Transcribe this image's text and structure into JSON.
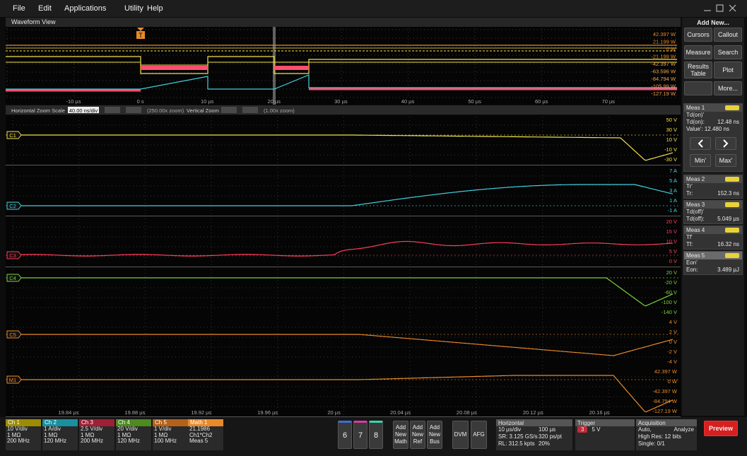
{
  "menu_bar": {
    "items": [
      "File",
      "Edit",
      "Applications",
      "Utility",
      "Help"
    ]
  },
  "waveform_view": {
    "title": "Waveform View",
    "overview": {
      "trigger_marker": "T",
      "scale_labels": [
        "42.397 W",
        "21.199 W",
        "0 W",
        "-21.199 W",
        "-42.397 W",
        "-63.596 W",
        "-84.794 W",
        "-105.99 W",
        "-127.19 W"
      ],
      "time_labels": [
        "-10 µs",
        "0 s",
        "10 µs",
        "20 µs",
        "30 µs",
        "40 µs",
        "50 µs",
        "60 µs",
        "70 µs"
      ]
    },
    "zoom_bar": {
      "horizontal_label": "Horizontal Zoom Scale",
      "horizontal_value": "40.00 ns/div",
      "horizontal_zoom": "(250.00x zoom)",
      "vertical_label": "Vertical Zoom",
      "vertical_zoom": "(1.00x zoom)"
    },
    "panes": [
      {
        "label": "C1",
        "scale": [
          "50 V",
          "30 V",
          "10 V",
          "-10 V",
          "-30 V"
        ]
      },
      {
        "label": "C2",
        "scale": [
          "7 A",
          "5 A",
          "3 A",
          "1 A",
          "-1 A"
        ]
      },
      {
        "label": "C3",
        "scale": [
          "20 V",
          "15 V",
          "10 V",
          "5 V",
          "0 V"
        ]
      },
      {
        "label": "C4",
        "scale": [
          "20 V",
          "-20 V",
          "-60 V",
          "-100 V",
          "-140 V"
        ]
      },
      {
        "label": "C5",
        "scale": [
          "4 V",
          "2 V",
          "0 V",
          "-2 V",
          "-4 V"
        ]
      },
      {
        "label": "M1",
        "scale": [
          "42.397 W",
          "0 W",
          "-42.397 W",
          "-84.794 W",
          "-127.19 W"
        ]
      }
    ],
    "time_labels": [
      "19.84 µs",
      "19.88 µs",
      "19.92 µs",
      "19.96 µs",
      "20 µs",
      "20.04 µs",
      "20.08 µs",
      "20.12 µs",
      "20.16 µs"
    ]
  },
  "side_panel": {
    "title": "Add New...",
    "buttons": [
      "Cursors",
      "Callout",
      "Measure",
      "Search",
      "Results Table",
      "Plot",
      "More..."
    ],
    "measurements": [
      {
        "name": "Meas 1",
        "primary": "Td(on)'",
        "label": "Td(on):",
        "value": "12.48 ns"
      },
      {
        "name": "Meas 2",
        "primary": "Tr'",
        "label": "Tr:",
        "value": "152.3 ns"
      },
      {
        "name": "Meas 3",
        "primary": "Td(off)'",
        "label": "Td(off):",
        "value": "5.049 µs"
      },
      {
        "name": "Meas 4",
        "primary": "Tf'",
        "label": "Tf:",
        "value": "16.32 ns"
      },
      {
        "name": "Meas 5",
        "primary": "Eon'",
        "label": "Eon:",
        "value": "3.489 µJ"
      }
    ],
    "meas1_value": "Value': 12.480 ns",
    "meas1_buttons": [
      "Min'",
      "Max'"
    ]
  },
  "bottom_bar": {
    "channels": [
      {
        "name": "Ch 1",
        "lines": [
          "10 V/div",
          "1 MΩ",
          "200 MHz"
        ]
      },
      {
        "name": "Ch 2",
        "lines": [
          "1 A/div",
          "1 MΩ",
          "120 MHz"
        ]
      },
      {
        "name": "Ch 3",
        "lines": [
          "2.5 V/div",
          "1 MΩ",
          "200 MHz"
        ]
      },
      {
        "name": "Ch 4",
        "lines": [
          "20 V/div",
          "1 MΩ",
          "120 MHz"
        ]
      },
      {
        "name": "Ch 5",
        "lines": [
          "1 V/div",
          "1 MΩ",
          "100 MHz"
        ]
      },
      {
        "name": "Math 1",
        "lines": [
          "21.1986",
          "Ch1*Ch2",
          "Meas 5"
        ]
      }
    ],
    "numbers": [
      "6",
      "7",
      "8"
    ],
    "add_buttons": [
      "Add New Math",
      "Add New Ref",
      "Add New Bus"
    ],
    "tools": [
      "DVM",
      "AFG"
    ],
    "horizontal": {
      "title": "Horizontal",
      "rows": [
        [
          "10 µs/div",
          "100 µs"
        ],
        [
          "SR: 3.125 GS/s",
          "320 ps/pt"
        ],
        [
          "RL: 312.5 kpts",
          "20%"
        ]
      ]
    },
    "trigger": {
      "title": "Trigger",
      "source": "3",
      "level": "5 V"
    },
    "acquisition": {
      "title": "Acquisition",
      "rows": [
        [
          "Auto,",
          "Analyze"
        ],
        [
          "High Res: 12 bits"
        ],
        [
          "Single: 0/1"
        ]
      ]
    },
    "preview": "Preview"
  }
}
